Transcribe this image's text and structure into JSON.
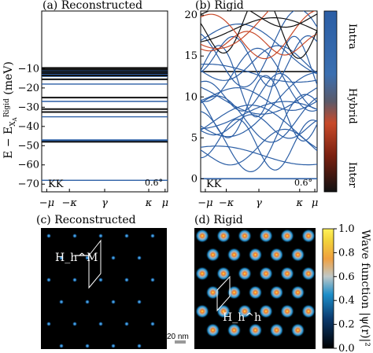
{
  "chart_data": [
    {
      "panel": "(a)",
      "title": "Reconstructed",
      "type": "line",
      "ylabel": "E − E_XA^Rigid (meV)",
      "ylim": [
        -74,
        20
      ],
      "yticks": [
        -70,
        -60,
        -50,
        -40,
        -30,
        -20,
        -10
      ],
      "xticks": [
        "−μ",
        "−κ",
        "γ",
        "κ",
        "μ"
      ],
      "corner_left": "KK",
      "corner_right": "0.6°",
      "series": [
        {
          "color": "blue",
          "values": [
            -68,
            -47.5,
            -47,
            -35,
            -27,
            -18,
            -14,
            -12.8,
            -11.8,
            -10.9
          ]
        },
        {
          "color": "black",
          "values": [
            -48,
            -32.5,
            -31,
            -25,
            -15.5,
            -13.5,
            -12.3,
            -11.3,
            -10.3,
            -9.6
          ]
        }
      ]
    },
    {
      "panel": "(b)",
      "title": "Rigid",
      "type": "line",
      "ylim": [
        -1.6,
        20.5
      ],
      "yticks": [
        0,
        5,
        10,
        15,
        20
      ],
      "xticks": [
        "−μ",
        "−κ",
        "γ",
        "κ",
        "μ"
      ],
      "corner_left": "KK",
      "corner_right": "0.6°",
      "colorbar": {
        "labels": [
          "Intra",
          "Hybrid",
          "Inter"
        ],
        "colors": [
          "#2b5ea5",
          "#c84a2a",
          "#111111"
        ]
      },
      "flat_bands": [
        {
          "energy": 0,
          "color": "blue"
        },
        {
          "energy": 13.1,
          "color": "black"
        }
      ]
    },
    {
      "panel": "(c)",
      "title": "Reconstructed",
      "type": "heatmap",
      "annotation": "H_h^M"
    },
    {
      "panel": "(d)",
      "title": "Rigid",
      "type": "heatmap",
      "annotation": "H_h^h",
      "scalebar": "20 nm",
      "colorbar": {
        "label": "Wave function |ψ(r)|²",
        "ticks": [
          "0.0",
          "0.2",
          "0.4",
          "0.6",
          "0.8",
          "1.0"
        ]
      }
    }
  ]
}
